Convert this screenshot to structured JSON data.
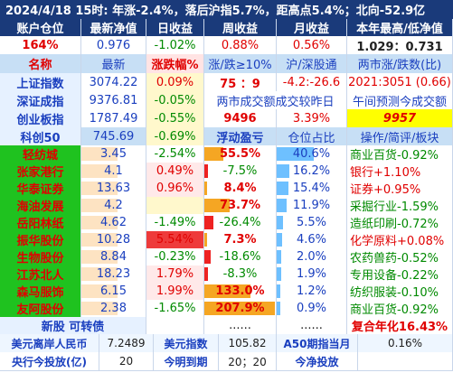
{
  "title_bar": {
    "text": "2024/4/18  15时: 年涨-2.4%，落后沪指5.7%，距高点5.4%；北向-52.9亿"
  },
  "account_header": [
    "账户仓位",
    "最新净值",
    "日收益",
    "周收益",
    "月收益",
    "本年最高/低净值"
  ],
  "account_values": [
    "164%",
    "0.976",
    "-1.02%",
    "0.88%",
    "0.56%",
    "1.029：0.731"
  ],
  "index_header": [
    "名称",
    "最新",
    "涨跌幅%",
    "涨/跌≥10%",
    "沪/深股通",
    "两市涨/跌数(比)"
  ],
  "indices": [
    {
      "name": "上证指数",
      "last": "3074.22",
      "chg": "0.09%",
      "c4": "75 ：9",
      "c5": "-4.2:-26.6",
      "c6": "2021:3051 (0.66)"
    },
    {
      "name": "深证成指",
      "last": "9376.81",
      "chg": "-0.05%",
      "c4": "两市成交额成交较昨日",
      "c6": "午间预测今成交额"
    },
    {
      "name": "创业板指",
      "last": "1787.49",
      "chg": "-0.55%",
      "c4": "9496",
      "c5": "3.39%",
      "c6": "9957"
    },
    {
      "name": "科创50",
      "last": "745.69",
      "chg": "-0.69%",
      "c4": "浮动盈亏",
      "c5": "仓位占比",
      "c6": "操作/简评/板块"
    }
  ],
  "holdings": [
    {
      "name": "轻纺城",
      "last": "3.45",
      "chg": "-2.54%",
      "pnl": "55.5%",
      "pnl_frac": 0.27,
      "pos": "40.6%",
      "pos_frac": 0.5,
      "note": "商业百货-0.92%"
    },
    {
      "name": "张家港行",
      "last": "4.1",
      "chg": "0.49%",
      "pnl": "-7.5%",
      "pnl_frac": -0.05,
      "pos": "16.2%",
      "pos_frac": 0.15,
      "note": "银行+1.10%"
    },
    {
      "name": "华泰证券",
      "last": "13.63",
      "chg": "0.96%",
      "pnl": "8.4%",
      "pnl_frac": 0.04,
      "pos": "15.4%",
      "pos_frac": 0.13,
      "note": "证券+0.95%"
    },
    {
      "name": "海油发展",
      "last": "4.2",
      "chg": "",
      "pnl": "73.7%",
      "pnl_frac": 0.36,
      "pos": "11.9%",
      "pos_frac": 0.1,
      "note": "采掘行业-1.59%"
    },
    {
      "name": "岳阳林纸",
      "last": "4.62",
      "chg": "-1.49%",
      "pnl": "-26.4%",
      "pnl_frac": -0.13,
      "pos": "5.5%",
      "pos_frac": 0.05,
      "note": "造纸印刷-0.72%"
    },
    {
      "name": "振华股份",
      "last": "10.28",
      "chg": "5.54%",
      "pnl": "7.3%",
      "pnl_frac": 0.04,
      "pos": "4.6%",
      "pos_frac": 0.04,
      "note": "化学原料+0.08%"
    },
    {
      "name": "生物股份",
      "last": "8.84",
      "chg": "-0.23%",
      "pnl": "-18.6%",
      "pnl_frac": -0.09,
      "pos": "2.0%",
      "pos_frac": 0.02,
      "note": "农药兽药-0.52%"
    },
    {
      "name": "江苏北人",
      "last": "18.23",
      "chg": "1.79%",
      "pnl": "-8.3%",
      "pnl_frac": -0.05,
      "pos": "1.9%",
      "pos_frac": 0.02,
      "note": "专用设备-0.22%"
    },
    {
      "name": "森马服饰",
      "last": "6.15",
      "chg": "1.99%",
      "pnl": "133.0%",
      "pnl_frac": 0.65,
      "pos": "1.2%",
      "pos_frac": 0.01,
      "note": "纺织服装-0.10%"
    },
    {
      "name": "友阿股份",
      "last": "2.38",
      "chg": "-1.65%",
      "pnl": "207.9%",
      "pnl_frac": 1.0,
      "pos": "0.9%",
      "pos_frac": 0.01,
      "note": "商业百货-0.92%"
    }
  ],
  "new_row": {
    "name": "新股  可转债",
    "pnl": "......",
    "pos": "......",
    "note": "复合年化16.43%"
  },
  "bottom1": {
    "l1": "美元离岸人民币",
    "v1": "7.2489",
    "l2": "美元指数",
    "v2": "105.82",
    "l3": "A50期指当月",
    "v3": "0.16%"
  },
  "bottom2": {
    "l1": "央行今投放(亿)",
    "v1": "20",
    "l2": "今明到期",
    "v2": "20；20",
    "l3": "今净投放",
    "v3": ""
  },
  "colors": {
    "navy": "#1a3a7a",
    "header_light": "#c7dff5",
    "value_bg": "#e8f4ff",
    "name_green": "#1fc21f",
    "red_bar": "#ee2222",
    "orange_bar": "#f5a623",
    "pos_bar": "#6ec0ff"
  }
}
